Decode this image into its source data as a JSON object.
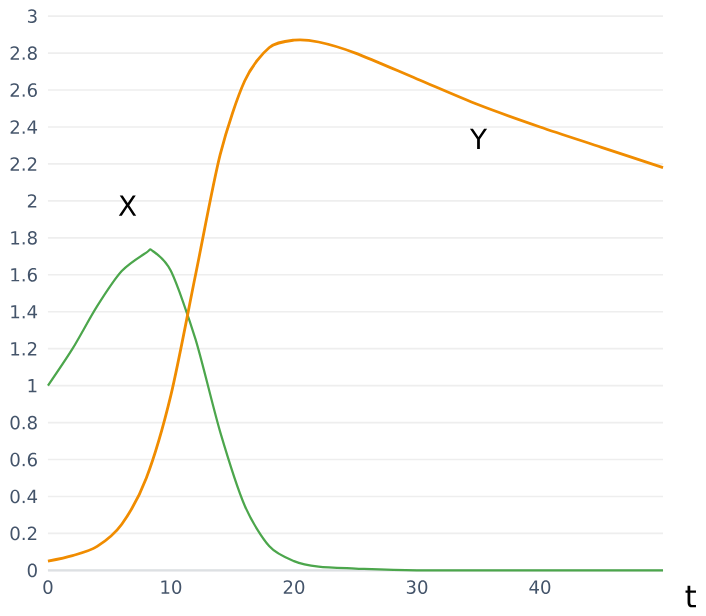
{
  "chart_data": {
    "type": "line",
    "xlabel": "t",
    "xlim": [
      0,
      50
    ],
    "xticks": [
      0,
      10,
      20,
      30,
      40
    ],
    "ylim": [
      0,
      3
    ],
    "yticks": [
      0,
      0.2,
      0.4,
      0.6,
      0.8,
      1,
      1.2,
      1.4,
      1.6,
      1.8,
      2,
      2.2,
      2.4,
      2.6,
      2.8,
      3
    ],
    "grid": "y",
    "legend": false,
    "marker": "none",
    "line_style": "solid",
    "series": [
      {
        "name": "X",
        "color": "#4ca64c",
        "x": [
          0,
          2,
          4,
          6,
          8,
          8.5,
          10,
          12,
          14,
          16,
          18,
          20,
          22,
          25,
          30,
          40,
          50
        ],
        "values": [
          1.0,
          1.2,
          1.43,
          1.62,
          1.72,
          1.73,
          1.62,
          1.25,
          0.75,
          0.35,
          0.13,
          0.05,
          0.02,
          0.01,
          0,
          0,
          0
        ]
      },
      {
        "name": "Y",
        "color": "#f08c00",
        "x": [
          0,
          2,
          4,
          6,
          8,
          10,
          12,
          14,
          16,
          18,
          20,
          22,
          25,
          30,
          35,
          40,
          45,
          50
        ],
        "values": [
          0.05,
          0.08,
          0.13,
          0.25,
          0.5,
          0.95,
          1.6,
          2.25,
          2.65,
          2.83,
          2.87,
          2.86,
          2.8,
          2.66,
          2.52,
          2.4,
          2.29,
          2.18
        ]
      }
    ]
  }
}
